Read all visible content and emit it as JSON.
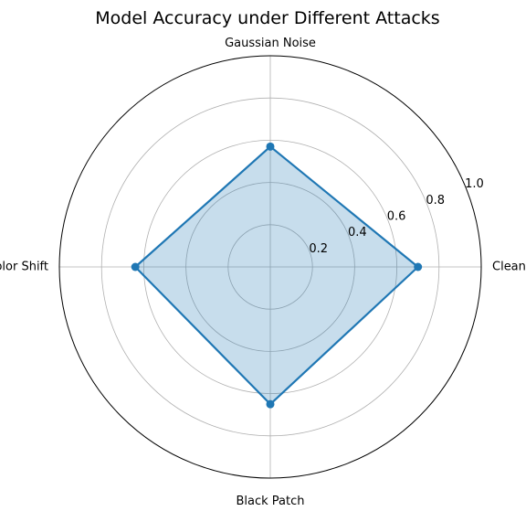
{
  "chart_data": {
    "type": "radar",
    "title": "Model Accuracy under Different Attacks",
    "categories": [
      "Clean",
      "Gaussian Noise",
      "Color Shift",
      "Black Patch"
    ],
    "series": [
      {
        "values": [
          0.7,
          0.57,
          0.64,
          0.65
        ]
      }
    ],
    "rlim": [
      0,
      1.0
    ],
    "radial_ticks": [
      0.2,
      0.4,
      0.6,
      0.8,
      1.0
    ],
    "radial_tick_labels": [
      "0.2",
      "0.4",
      "0.6",
      "0.8",
      "1.0"
    ],
    "grid": true,
    "colors": {
      "line": "#1f77b4",
      "fill": "#1f77b4",
      "grid": "#b0b0b0",
      "outline": "#000000"
    }
  }
}
